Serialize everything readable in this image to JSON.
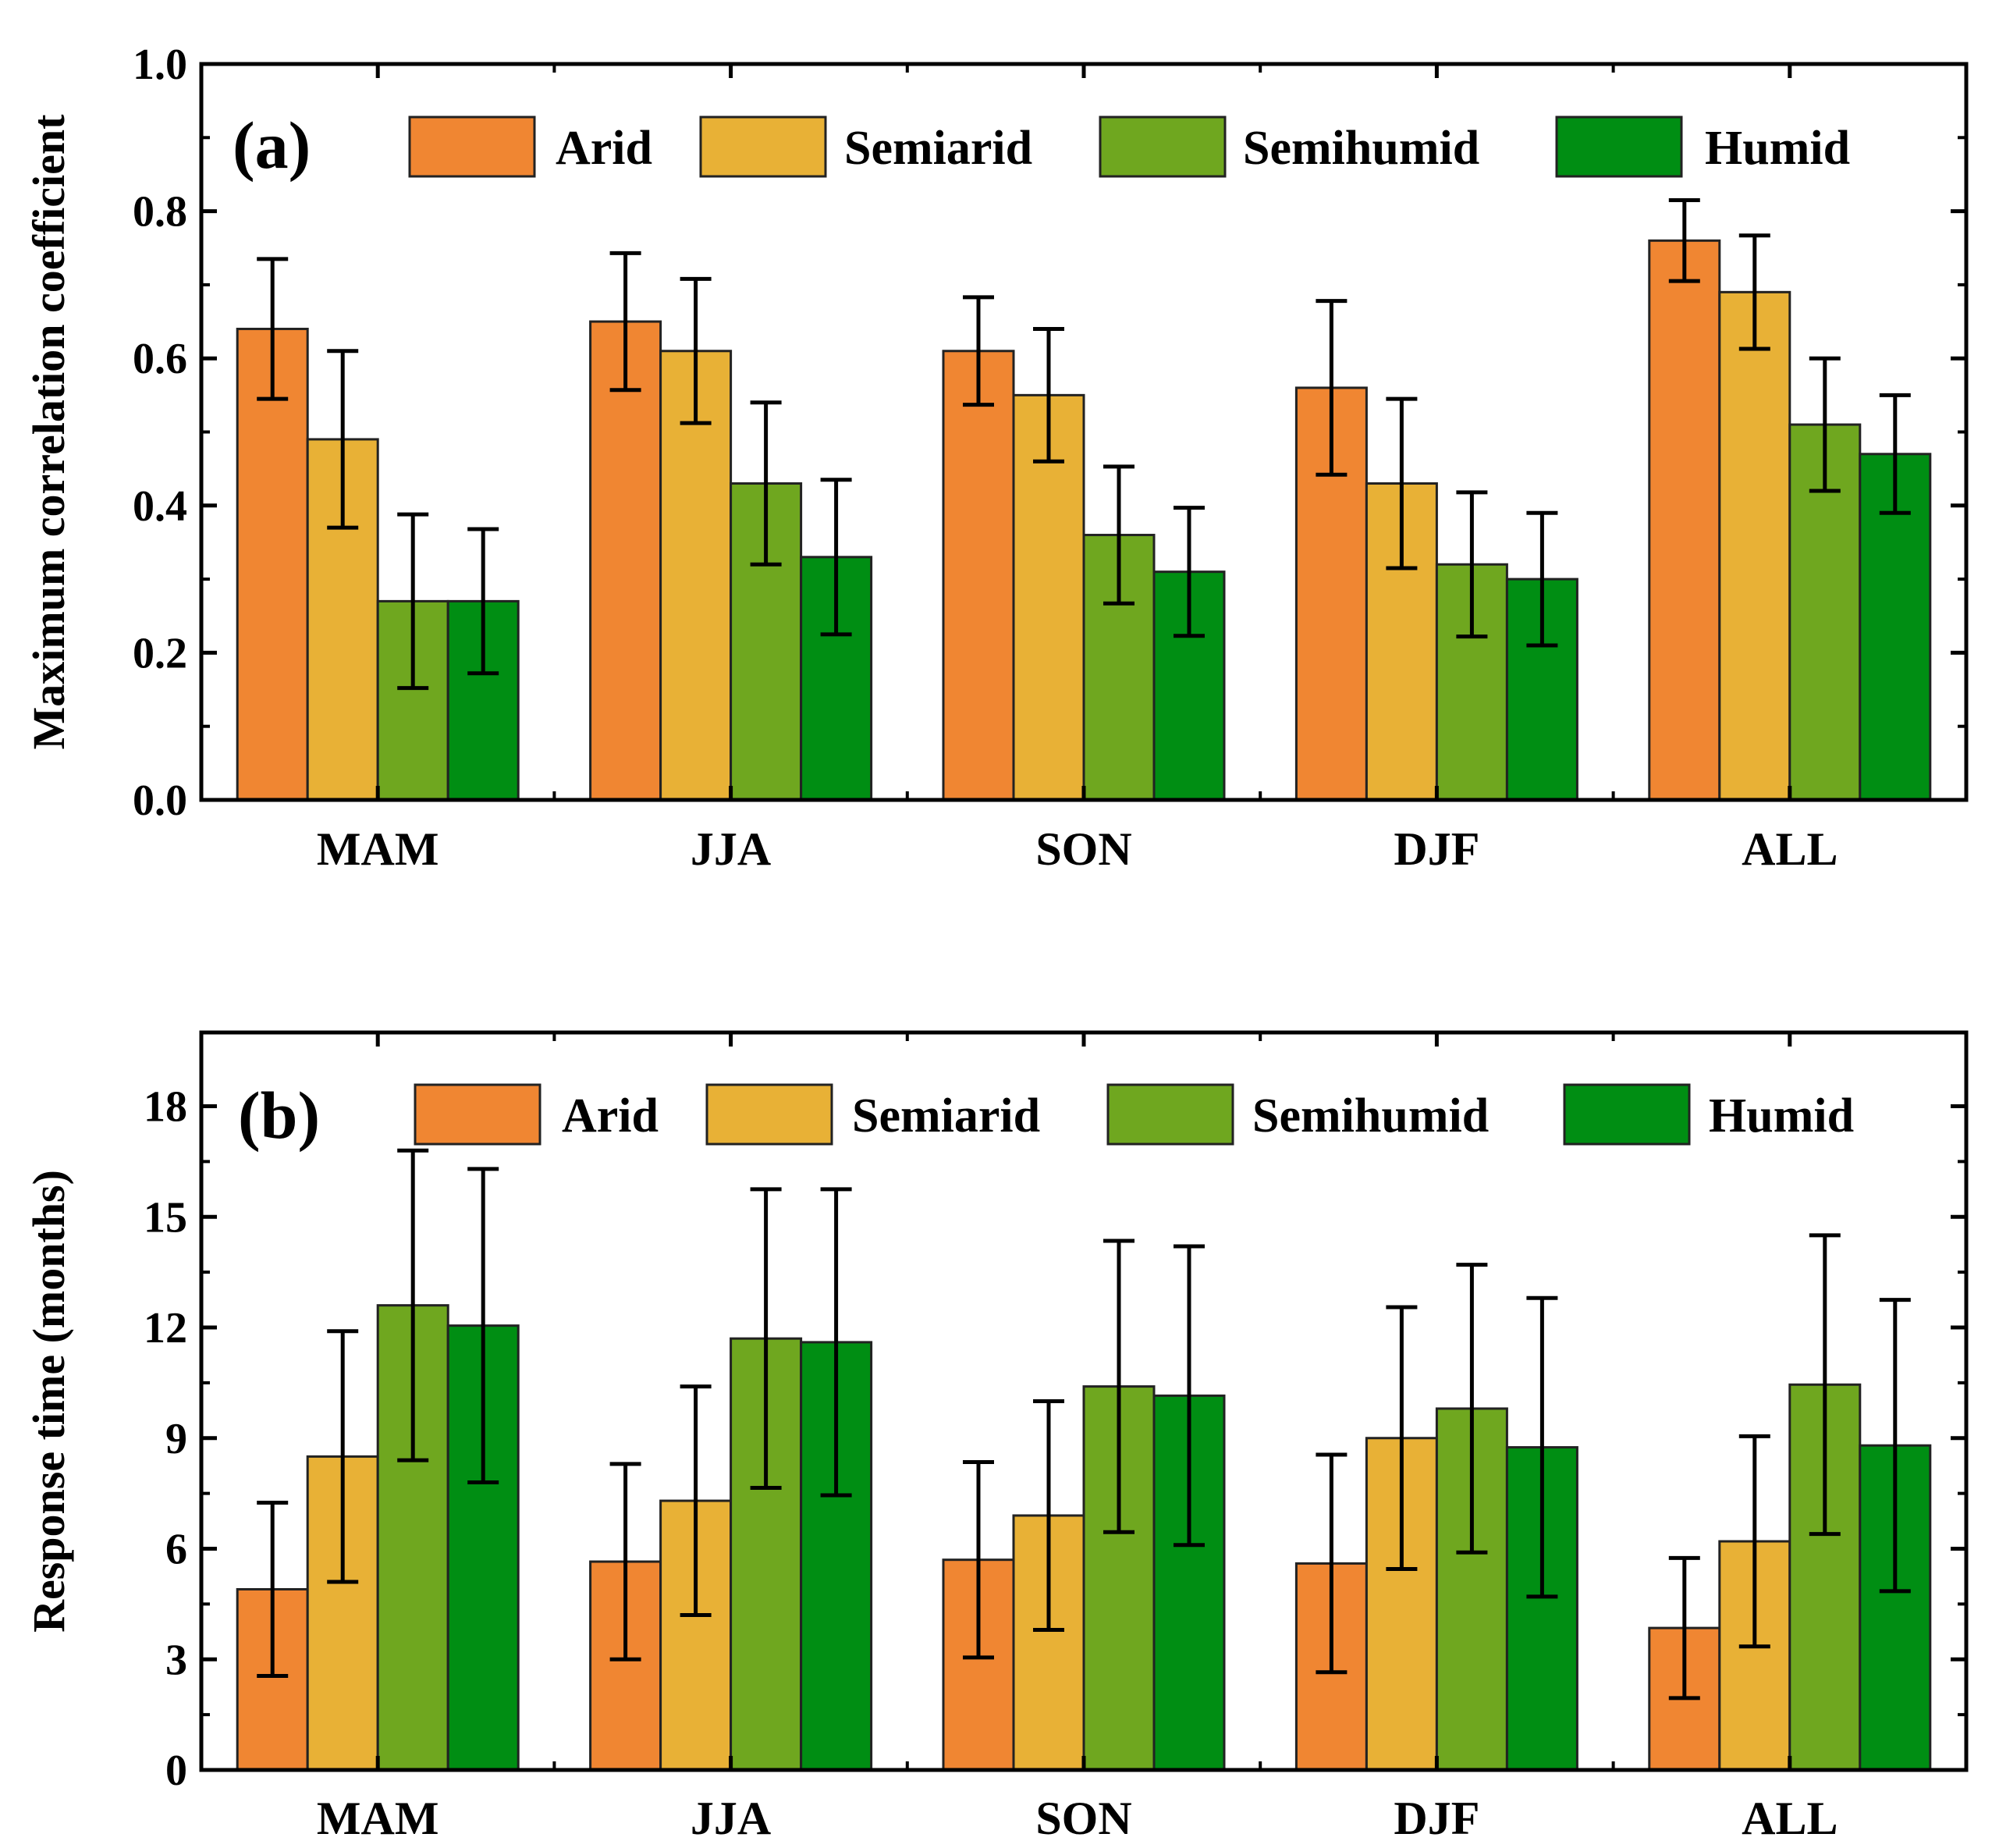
{
  "chart_data": [
    {
      "type": "bar",
      "panel_label": "(a)",
      "ylabel": "Maximum correlation coefficient",
      "xlabel": "",
      "ylim": [
        0,
        1.0
      ],
      "yticks": [
        0.0,
        0.2,
        0.4,
        0.6,
        0.8,
        1.0
      ],
      "ytick_labels": [
        "0.0",
        "0.2",
        "0.4",
        "0.6",
        "0.8",
        "1.0"
      ],
      "categories": [
        "MAM",
        "JJA",
        "SON",
        "DJF",
        "ALL"
      ],
      "legend_position": "top",
      "series": [
        {
          "name": "Arid",
          "color": "#f08632",
          "values": [
            0.64,
            0.65,
            0.61,
            0.56,
            0.76
          ],
          "errors": [
            0.095,
            0.093,
            0.073,
            0.118,
            0.055
          ]
        },
        {
          "name": "Semiarid",
          "color": "#e8b136",
          "values": [
            0.49,
            0.61,
            0.55,
            0.43,
            0.69
          ],
          "errors": [
            0.12,
            0.098,
            0.09,
            0.115,
            0.077
          ]
        },
        {
          "name": "Semihumid",
          "color": "#6fa71f",
          "values": [
            0.27,
            0.43,
            0.36,
            0.32,
            0.51
          ],
          "errors": [
            0.118,
            0.11,
            0.093,
            0.098,
            0.09
          ]
        },
        {
          "name": "Humid",
          "color": "#008e13",
          "values": [
            0.27,
            0.33,
            0.31,
            0.3,
            0.47
          ],
          "errors": [
            0.098,
            0.105,
            0.087,
            0.09,
            0.08
          ]
        }
      ]
    },
    {
      "type": "bar",
      "panel_label": "(b)",
      "ylabel": "Response time (months)",
      "xlabel": "",
      "ylim": [
        0,
        20
      ],
      "yticks": [
        0,
        3,
        6,
        9,
        12,
        15,
        18
      ],
      "ytick_labels": [
        "0",
        "3",
        "6",
        "9",
        "12",
        "15",
        "18"
      ],
      "categories": [
        "MAM",
        "JJA",
        "SON",
        "DJF",
        "ALL"
      ],
      "legend_position": "top",
      "series": [
        {
          "name": "Arid",
          "color": "#f08632",
          "values": [
            4.9,
            5.65,
            5.7,
            5.6,
            3.85
          ],
          "errors": [
            2.35,
            2.65,
            2.65,
            2.95,
            1.9
          ]
        },
        {
          "name": "Semiarid",
          "color": "#e8b136",
          "values": [
            8.5,
            7.3,
            6.9,
            9.0,
            6.2
          ],
          "errors": [
            3.4,
            3.1,
            3.1,
            3.55,
            2.85
          ]
        },
        {
          "name": "Semihumid",
          "color": "#6fa71f",
          "values": [
            12.6,
            11.7,
            10.4,
            9.8,
            10.45
          ],
          "errors": [
            4.2,
            4.05,
            3.95,
            3.9,
            4.05
          ]
        },
        {
          "name": "Humid",
          "color": "#008e13",
          "values": [
            12.05,
            11.6,
            10.15,
            8.75,
            8.8
          ],
          "errors": [
            4.25,
            4.15,
            4.05,
            4.05,
            3.95
          ]
        }
      ]
    }
  ]
}
